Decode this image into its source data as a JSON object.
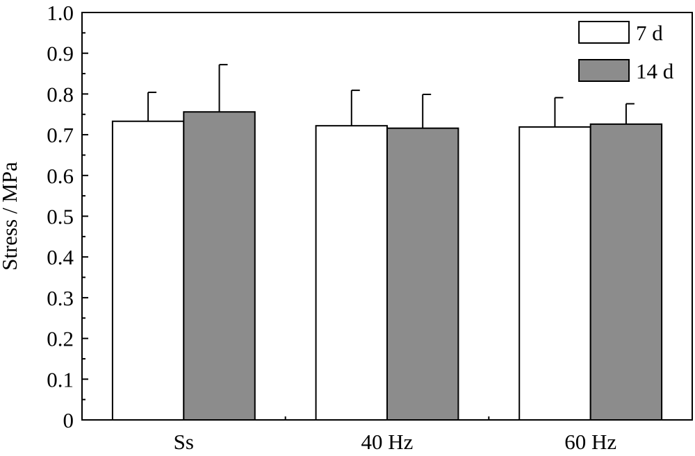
{
  "chart_data": {
    "type": "bar",
    "categories": [
      "Ss",
      "40 Hz",
      "60 Hz"
    ],
    "series": [
      {
        "name": "7 d",
        "values": [
          0.733,
          0.722,
          0.719
        ],
        "errors": [
          0.071,
          0.087,
          0.072
        ],
        "color": "#ffffff"
      },
      {
        "name": "14 d",
        "values": [
          0.756,
          0.716,
          0.726
        ],
        "errors": [
          0.116,
          0.083,
          0.05
        ],
        "color": "#8c8c8c"
      }
    ],
    "xlabel": "",
    "ylabel": "Stress / MPa",
    "ylim": [
      0,
      1.0
    ],
    "yticks": [
      "0",
      "0.1",
      "0.2",
      "0.3",
      "0.4",
      "0.5",
      "0.6",
      "0.7",
      "0.8",
      "0.9",
      "1.0"
    ],
    "grid": false,
    "legend_position": "top-right",
    "error_bars": "upper"
  }
}
